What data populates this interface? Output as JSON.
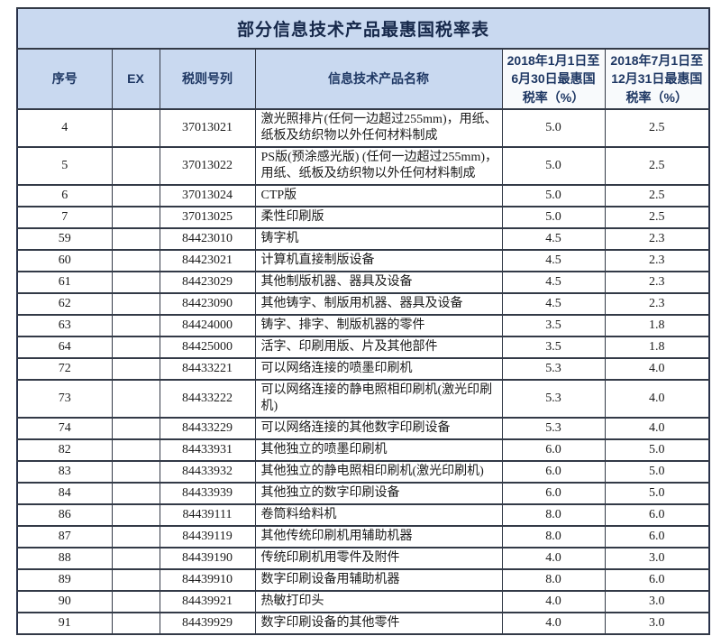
{
  "table": {
    "title": "部分信息技术产品最惠国税率表",
    "columns": [
      {
        "key": "seq",
        "label": "序号"
      },
      {
        "key": "ex",
        "label": "EX"
      },
      {
        "key": "code",
        "label": "税则号列"
      },
      {
        "key": "name",
        "label": "信息技术产品名称"
      },
      {
        "key": "rate_h1",
        "label": "2018年1月1日至6月30日最惠国税率（%）"
      },
      {
        "key": "rate_h2",
        "label": "2018年7月1日至12月31日最惠国税率（%）"
      }
    ],
    "rows": [
      [
        "4",
        "",
        "37013021",
        "激光照排片(任何一边超过255mm)，用纸、纸板及纺织物以外任何材料制成",
        "5.0",
        "2.5"
      ],
      [
        "5",
        "",
        "37013022",
        "PS版(预涂感光版) (任何一边超过255mm)，用纸、纸板及纺织物以外任何材料制成",
        "5.0",
        "2.5"
      ],
      [
        "6",
        "",
        "37013024",
        "CTP版",
        "5.0",
        "2.5"
      ],
      [
        "7",
        "",
        "37013025",
        "柔性印刷版",
        "5.0",
        "2.5"
      ],
      [
        "59",
        "",
        "84423010",
        "铸字机",
        "4.5",
        "2.3"
      ],
      [
        "60",
        "",
        "84423021",
        "计算机直接制版设备",
        "4.5",
        "2.3"
      ],
      [
        "61",
        "",
        "84423029",
        "其他制版机器、器具及设备",
        "4.5",
        "2.3"
      ],
      [
        "62",
        "",
        "84423090",
        "其他铸字、制版用机器、器具及设备",
        "4.5",
        "2.3"
      ],
      [
        "63",
        "",
        "84424000",
        "铸字、排字、制版机器的零件",
        "3.5",
        "1.8"
      ],
      [
        "64",
        "",
        "84425000",
        "活字、印刷用版、片及其他部件",
        "3.5",
        "1.8"
      ],
      [
        "72",
        "",
        "84433221",
        "可以网络连接的喷墨印刷机",
        "5.3",
        "4.0"
      ],
      [
        "73",
        "",
        "84433222",
        "可以网络连接的静电照相印刷机(激光印刷机)",
        "5.3",
        "4.0"
      ],
      [
        "74",
        "",
        "84433229",
        "可以网络连接的其他数字印刷设备",
        "5.3",
        "4.0"
      ],
      [
        "82",
        "",
        "84433931",
        "其他独立的喷墨印刷机",
        "6.0",
        "5.0"
      ],
      [
        "83",
        "",
        "84433932",
        "其他独立的静电照相印刷机(激光印刷机)",
        "6.0",
        "5.0"
      ],
      [
        "84",
        "",
        "84433939",
        "其他独立的数字印刷设备",
        "6.0",
        "5.0"
      ],
      [
        "86",
        "",
        "84439111",
        "卷筒料给料机",
        "8.0",
        "6.0"
      ],
      [
        "87",
        "",
        "84439119",
        "其他传统印刷机用辅助机器",
        "8.0",
        "6.0"
      ],
      [
        "88",
        "",
        "84439190",
        "传统印刷机用零件及附件",
        "4.0",
        "3.0"
      ],
      [
        "89",
        "",
        "84439910",
        "数字印刷设备用辅助机器",
        "8.0",
        "6.0"
      ],
      [
        "90",
        "",
        "84439921",
        "热敏打印头",
        "4.0",
        "3.0"
      ],
      [
        "91",
        "",
        "84439929",
        "数字印刷设备的其他零件",
        "4.0",
        "3.0"
      ]
    ],
    "colors": {
      "title_bg": "#c9d9f0",
      "header_bg": "#c9d9f0",
      "rate_header_bg": "#f8fafc",
      "header_text": "#1f3864",
      "title_text": "#16284a",
      "body_text": "#1b1b1b",
      "border": "#333a47",
      "row_bg": "#ffffff"
    }
  }
}
